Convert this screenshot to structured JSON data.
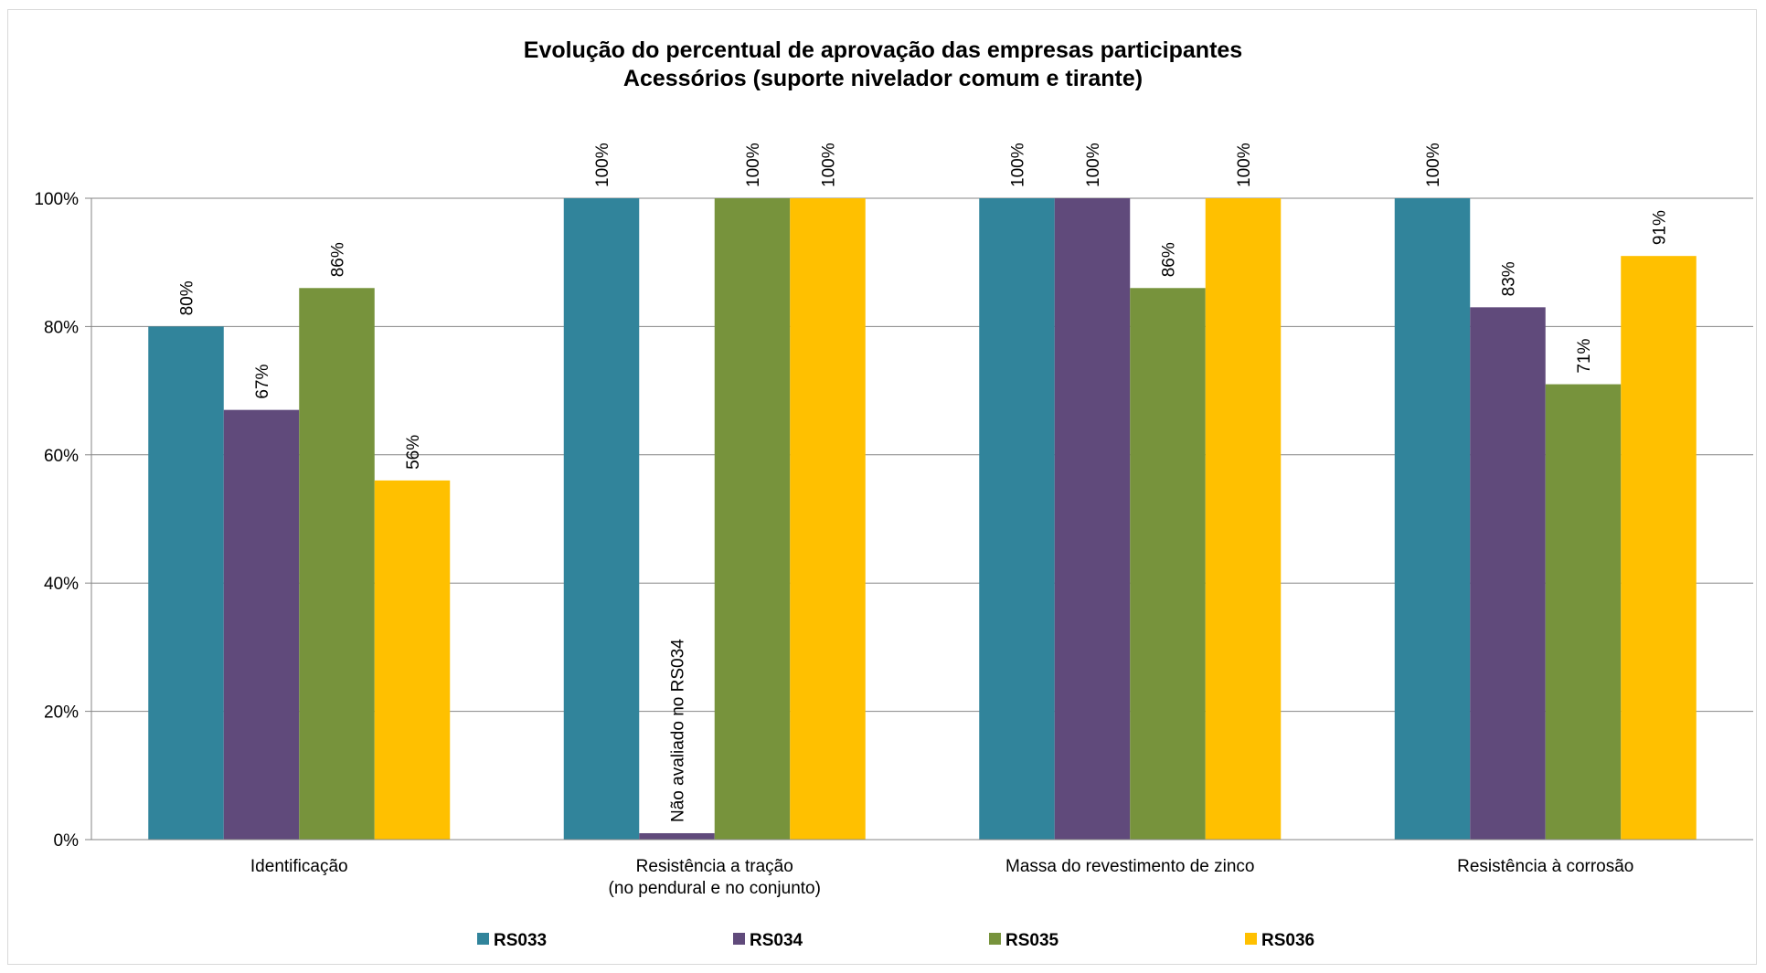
{
  "chart_data": {
    "type": "bar",
    "title": "Evolução do percentual de aprovação das empresas participantes",
    "subtitle": "Acessórios (suporte nivelador comum e tirante)",
    "categories": [
      [
        "Identificação"
      ],
      [
        "Resistência a tração",
        "(no pendural e no conjunto)"
      ],
      [
        "Massa do revestimento de zinco"
      ],
      [
        "Resistência à corrosão"
      ]
    ],
    "series": [
      {
        "name": "RS033",
        "color": "#31849B",
        "values": [
          80,
          100,
          100,
          100
        ],
        "labels": [
          "80%",
          "100%",
          "100%",
          "100%"
        ]
      },
      {
        "name": "RS034",
        "color": "#604A7B",
        "values": [
          67,
          1,
          100,
          83
        ],
        "labels": [
          "67%",
          "Não avaliado no RS034",
          "100%",
          "83%"
        ]
      },
      {
        "name": "RS035",
        "color": "#77933C",
        "values": [
          86,
          100,
          86,
          71
        ],
        "labels": [
          "86%",
          "100%",
          "86%",
          "71%"
        ]
      },
      {
        "name": "RS036",
        "color": "#FFC000",
        "values": [
          56,
          100,
          100,
          91
        ],
        "labels": [
          "56%",
          "100%",
          "100%",
          "91%"
        ]
      }
    ],
    "yticks": [
      "0%",
      "20%",
      "40%",
      "60%",
      "80%",
      "100%"
    ],
    "ylim": [
      0,
      100
    ],
    "grid": true,
    "legend_position": "bottom"
  }
}
